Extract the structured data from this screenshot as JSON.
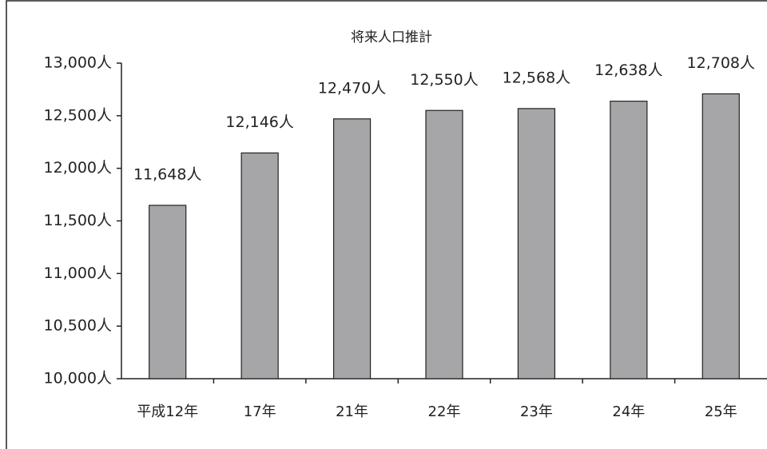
{
  "chart_data": {
    "type": "bar",
    "title": "将来人口推計",
    "categories": [
      "平成12年",
      "17年",
      "21年",
      "22年",
      "23年",
      "24年",
      "25年"
    ],
    "values": [
      11648,
      12146,
      12470,
      12550,
      12568,
      12638,
      12708
    ],
    "value_labels": [
      "11,648人",
      "12,146人",
      "12,470人",
      "12,550人",
      "12,568人",
      "12,638人",
      "12,708人"
    ],
    "color": "#a6a6a8",
    "ylim": [
      10000,
      13000
    ],
    "yticks": [
      {
        "value": 10000,
        "label": "10,000人"
      },
      {
        "value": 10500,
        "label": "10,500人"
      },
      {
        "value": 11000,
        "label": "11,000人"
      },
      {
        "value": 11500,
        "label": "11,500人"
      },
      {
        "value": 12000,
        "label": "12,000人"
      },
      {
        "value": 12500,
        "label": "12,500人"
      },
      {
        "value": 13000,
        "label": "13,000人"
      }
    ],
    "grid": false
  }
}
